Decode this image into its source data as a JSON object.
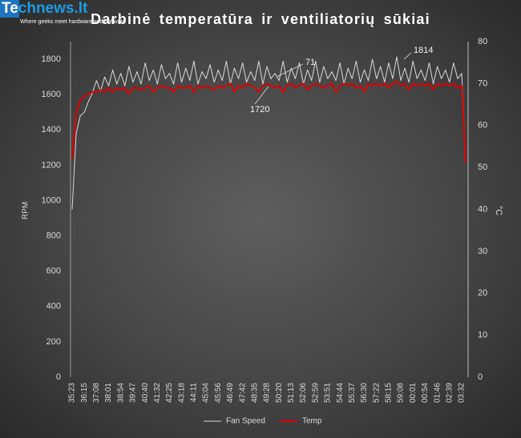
{
  "logo": {
    "name": "Technews.lt",
    "tagline": "Where geeks meet hardware and software"
  },
  "chart_data": {
    "type": "line",
    "title": "Darbinė temperatūra ir ventiliatorių sūkiai",
    "ylabel": "RPM",
    "y2label": "°C",
    "categories": [
      "35:23",
      null,
      null,
      "36:15",
      null,
      null,
      "37:08",
      null,
      null,
      "38:01",
      null,
      null,
      "38:54",
      null,
      null,
      "39:47",
      null,
      null,
      "40:40",
      null,
      null,
      "41:32",
      null,
      null,
      "42:25",
      null,
      null,
      "43:18",
      null,
      null,
      "44:11",
      null,
      null,
      "45:04",
      null,
      null,
      "45:56",
      null,
      null,
      "46:49",
      null,
      null,
      "47:42",
      null,
      null,
      "48:35",
      null,
      null,
      "49:28",
      null,
      null,
      "50:20",
      null,
      null,
      "51:13",
      null,
      null,
      "52:06",
      null,
      null,
      "52:59",
      null,
      null,
      "53:51",
      null,
      null,
      "54:44",
      null,
      null,
      "55:37",
      null,
      null,
      "56:30",
      null,
      null,
      "57:22",
      null,
      null,
      "58:15",
      null,
      null,
      "59:08",
      null,
      null,
      "00:01",
      null,
      null,
      "00:54",
      null,
      null,
      "01:46",
      null,
      null,
      "02:39",
      null,
      null,
      "03:32",
      null
    ],
    "series": [
      {
        "name": "Fan Speed",
        "color": "#d9d9d9",
        "axis": "y",
        "values": [
          950,
          1380,
          1480,
          1500,
          1560,
          1610,
          1680,
          1620,
          1700,
          1650,
          1740,
          1660,
          1720,
          1650,
          1760,
          1670,
          1730,
          1660,
          1780,
          1680,
          1740,
          1660,
          1770,
          1690,
          1720,
          1660,
          1780,
          1670,
          1750,
          1680,
          1790,
          1660,
          1730,
          1690,
          1770,
          1670,
          1740,
          1680,
          1790,
          1660,
          1750,
          1690,
          1780,
          1670,
          1730,
          1680,
          1790,
          1660,
          1760,
          1690,
          1720,
          1680,
          1790,
          1670,
          1750,
          1690,
          1780,
          1660,
          1740,
          1680,
          1790,
          1670,
          1760,
          1690,
          1730,
          1680,
          1780,
          1660,
          1750,
          1690,
          1790,
          1670,
          1740,
          1680,
          1800,
          1690,
          1760,
          1670,
          1780,
          1690,
          1814,
          1680,
          1750,
          1670,
          1790,
          1690,
          1740,
          1680,
          1780,
          1660,
          1760,
          1690,
          1740,
          1670,
          1780,
          1690,
          1720,
          1220
        ]
      },
      {
        "name": "Temp",
        "color": "#e00000",
        "axis": "y2",
        "values": [
          52,
          63,
          66,
          67,
          67.5,
          68,
          68,
          68.5,
          68,
          69,
          68,
          69,
          68.5,
          69,
          67.5,
          69,
          69,
          68.5,
          69,
          69.5,
          68,
          69,
          69.5,
          69,
          69,
          68,
          69.5,
          69,
          69,
          69.5,
          68,
          69.5,
          69,
          69.5,
          69,
          68.5,
          69.5,
          69,
          69.5,
          70,
          68,
          69.5,
          69,
          70,
          69.5,
          69,
          68,
          69.5,
          70,
          69.5,
          69,
          69.5,
          68,
          69.5,
          70,
          69,
          69.5,
          70,
          68.5,
          69.5,
          70,
          69.5,
          69,
          69.5,
          70,
          68,
          69.5,
          70,
          69.5,
          70,
          69,
          69.5,
          68,
          70,
          69.5,
          70,
          69.5,
          70,
          69,
          70,
          70.5,
          69.5,
          70,
          68.5,
          70,
          69.5,
          70,
          69.5,
          70,
          68.5,
          70,
          69.5,
          70,
          69.5,
          70,
          69,
          69.5,
          51
        ]
      }
    ],
    "annotations": [
      "1814",
      "71",
      "1720"
    ],
    "ylim": [
      0,
      1900
    ],
    "yticks": [
      0,
      200,
      400,
      600,
      800,
      1000,
      1200,
      1400,
      1600,
      1800
    ],
    "y2lim": [
      0,
      80
    ],
    "y2ticks": [
      0,
      10,
      20,
      30,
      40,
      50,
      60,
      70,
      80
    ],
    "grid": false,
    "legend": "bottom"
  }
}
